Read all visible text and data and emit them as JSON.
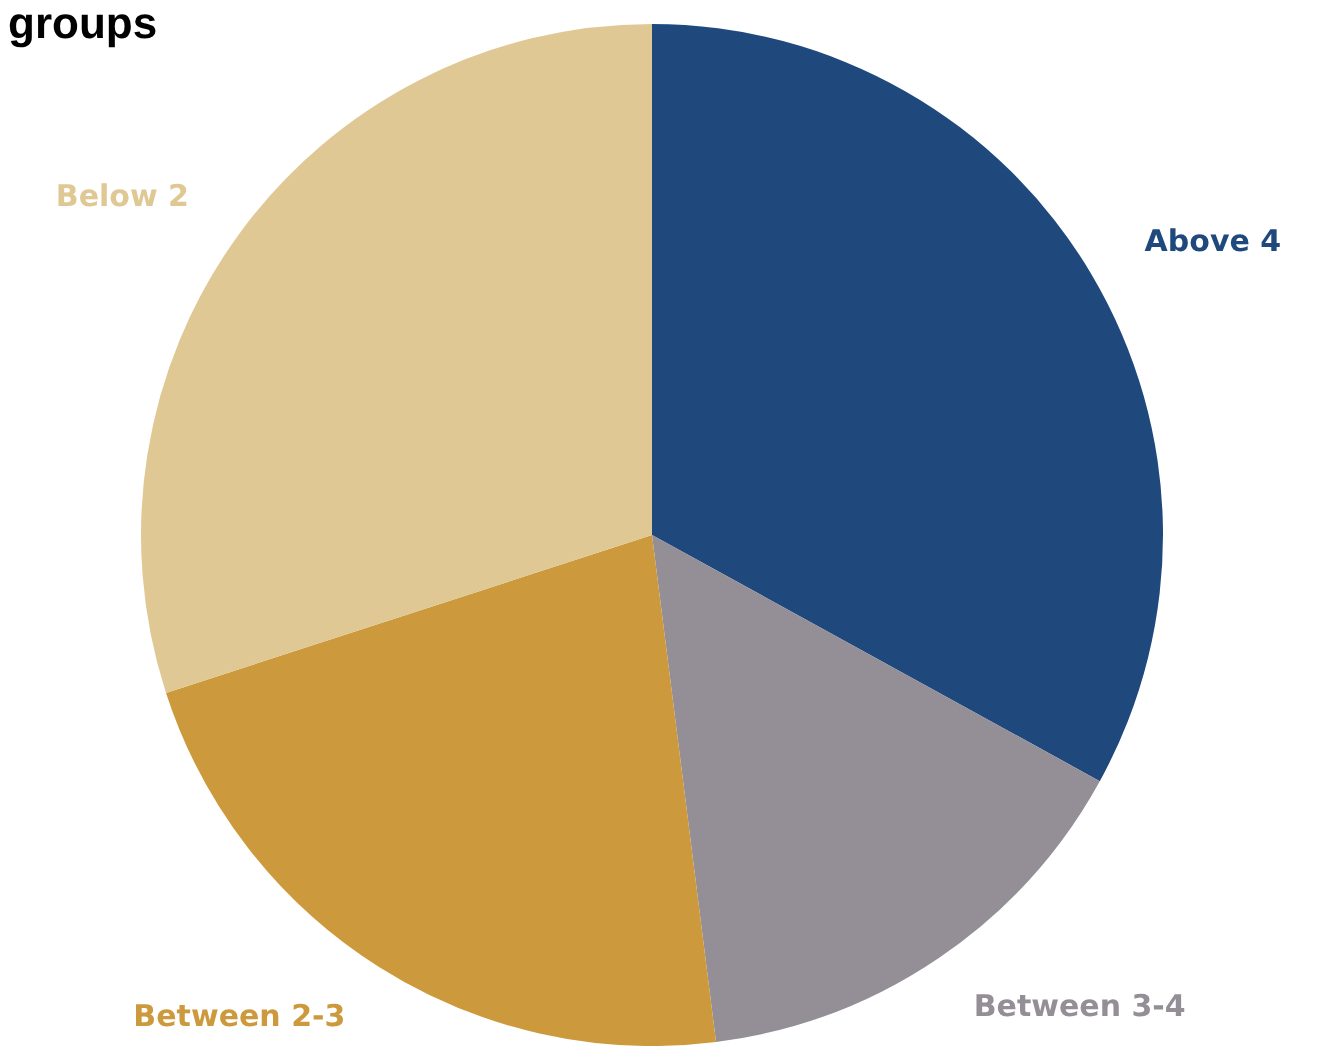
{
  "chart_data": {
    "type": "pie",
    "title": "groups",
    "categories": [
      "Above 4",
      "Between 3-4",
      "Between 2-3",
      "Below 2"
    ],
    "values": [
      33,
      15,
      22,
      30
    ],
    "colors": [
      "#1f497d",
      "#948f96",
      "#cc9a3c",
      "#dfc893"
    ],
    "legend": false
  }
}
